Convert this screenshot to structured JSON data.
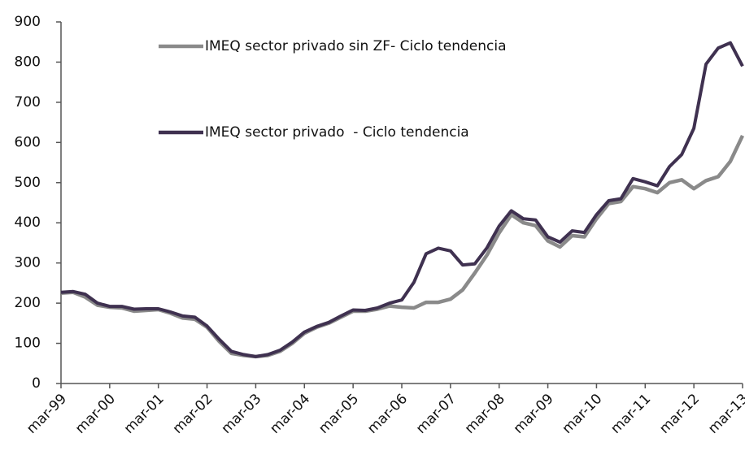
{
  "chart_data": {
    "type": "line",
    "categories": [
      "mar-99",
      null,
      null,
      null,
      "mar-00",
      null,
      null,
      null,
      "mar-01",
      null,
      null,
      null,
      "mar-02",
      null,
      null,
      null,
      "mar-03",
      null,
      null,
      null,
      "mar-04",
      null,
      null,
      null,
      "mar-05",
      null,
      null,
      null,
      "mar-06",
      null,
      null,
      null,
      "mar-07",
      null,
      null,
      null,
      "mar-08",
      null,
      null,
      null,
      "mar-09",
      null,
      null,
      null,
      "mar-10",
      null,
      null,
      null,
      "mar-11",
      null,
      null,
      null,
      "mar-12",
      null,
      null,
      null,
      "mar-13"
    ],
    "series": [
      {
        "name": "IMEQ sector privado sin ZF- Ciclo tendencia",
        "color": "#8a8a8a",
        "values": [
          225,
          227,
          215,
          195,
          190,
          188,
          180,
          182,
          184,
          175,
          163,
          160,
          140,
          105,
          75,
          70,
          67,
          70,
          80,
          100,
          125,
          140,
          150,
          165,
          180,
          180,
          185,
          193,
          190,
          188,
          202,
          202,
          210,
          233,
          275,
          320,
          375,
          420,
          400,
          393,
          355,
          340,
          368,
          365,
          410,
          448,
          453,
          490,
          485,
          475,
          500,
          507,
          485,
          505,
          515,
          553,
          617
        ]
      },
      {
        "name": "IMEQ sector privado  - Ciclo tendencia",
        "color": "#3f3150",
        "values": [
          227,
          229,
          222,
          200,
          192,
          192,
          185,
          186,
          186,
          178,
          168,
          165,
          143,
          110,
          80,
          72,
          67,
          72,
          83,
          103,
          128,
          142,
          152,
          168,
          183,
          182,
          188,
          200,
          208,
          252,
          323,
          337,
          330,
          295,
          298,
          338,
          392,
          430,
          410,
          407,
          365,
          352,
          380,
          376,
          420,
          455,
          460,
          510,
          502,
          492,
          540,
          570,
          635,
          795,
          835,
          848,
          790
        ]
      }
    ],
    "ylim": [
      0,
      900
    ],
    "yticks": [
      0,
      100,
      200,
      300,
      400,
      500,
      600,
      700,
      800,
      900
    ],
    "grid": false
  }
}
